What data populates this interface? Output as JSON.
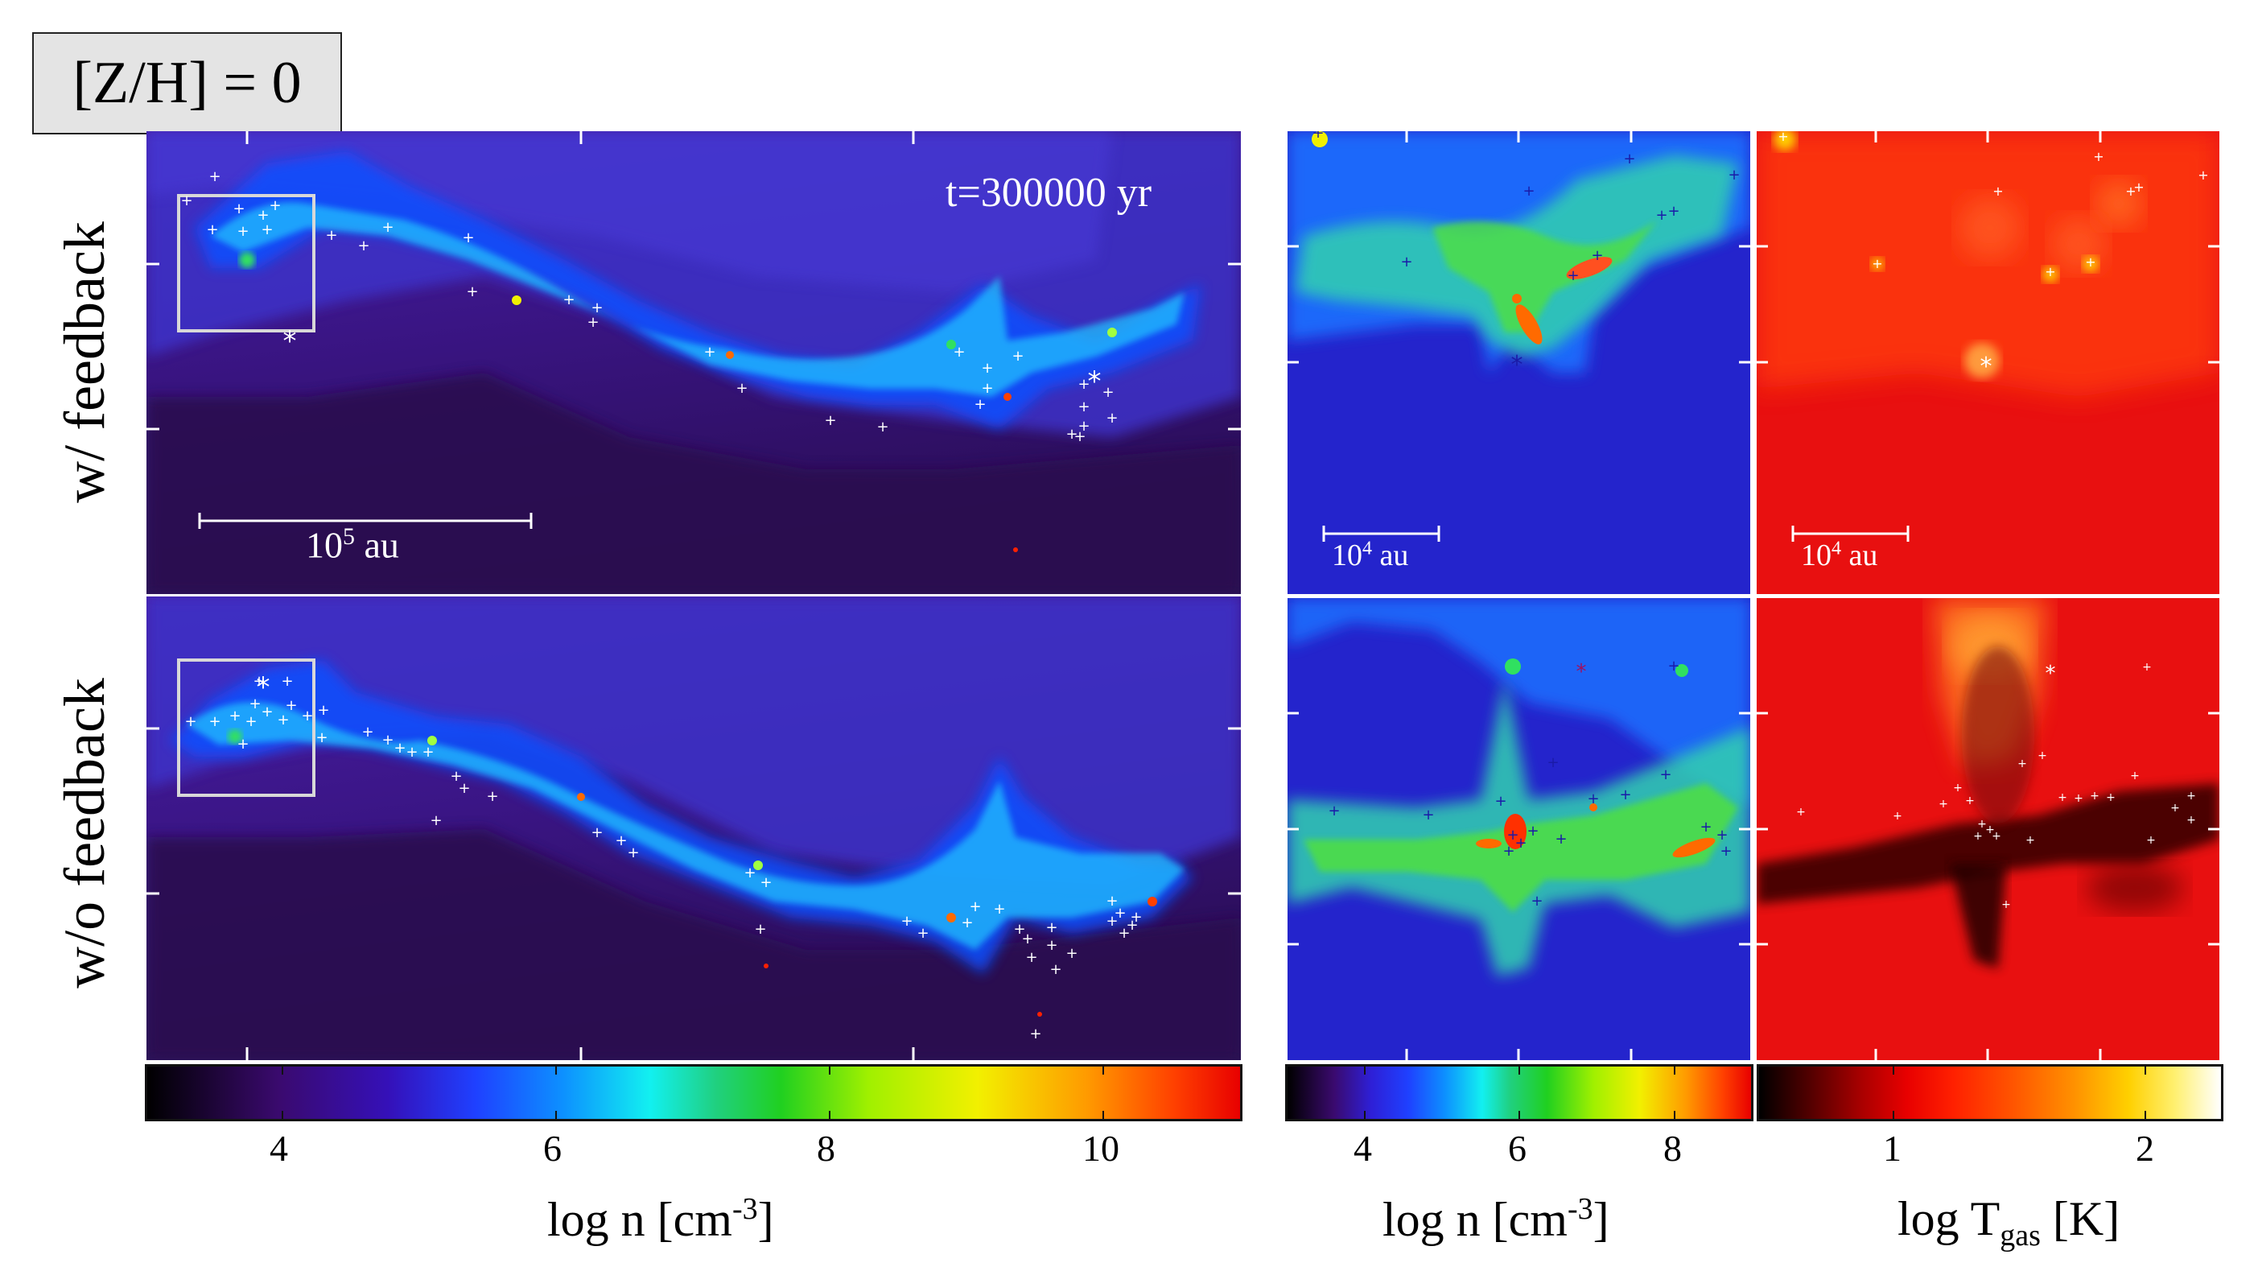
{
  "tag": "[Z/H] = 0",
  "row_labels": {
    "top": "w/ feedback",
    "bottom": "w/o feedback"
  },
  "time_label": "t=300000 yr",
  "scalebar_large": {
    "base": "10",
    "exp": "5",
    "unit": " au"
  },
  "scalebar_small": {
    "base": "10",
    "exp": "4",
    "unit": " au"
  },
  "colorbars": {
    "density_large": {
      "ticks": [
        "4",
        "6",
        "8",
        "10"
      ],
      "label_pre": "log n [cm",
      "label_sup": "-3",
      "label_post": "]"
    },
    "density_small": {
      "ticks": [
        "4",
        "6",
        "8"
      ],
      "label_pre": "log n [cm",
      "label_sup": "-3",
      "label_post": "]"
    },
    "temperature": {
      "ticks": [
        "1",
        "2"
      ],
      "label_pre": "log T",
      "label_sub": "gas",
      "label_post": " [K]"
    }
  },
  "colors": {
    "density_map": [
      "#000000",
      "#3a0a6e",
      "#2e1fd6",
      "#0d61ff",
      "#12f0f0",
      "#20d020",
      "#f2f000",
      "#ff5500",
      "#e80000"
    ],
    "temperature_map": [
      "#000000",
      "#7a0000",
      "#e80000",
      "#ff6a00",
      "#ffd000",
      "#ffffff"
    ],
    "background_purple": "#3e1a8c",
    "marker_white": "#ffffff",
    "marker_blue": "#1a1aa8"
  }
}
